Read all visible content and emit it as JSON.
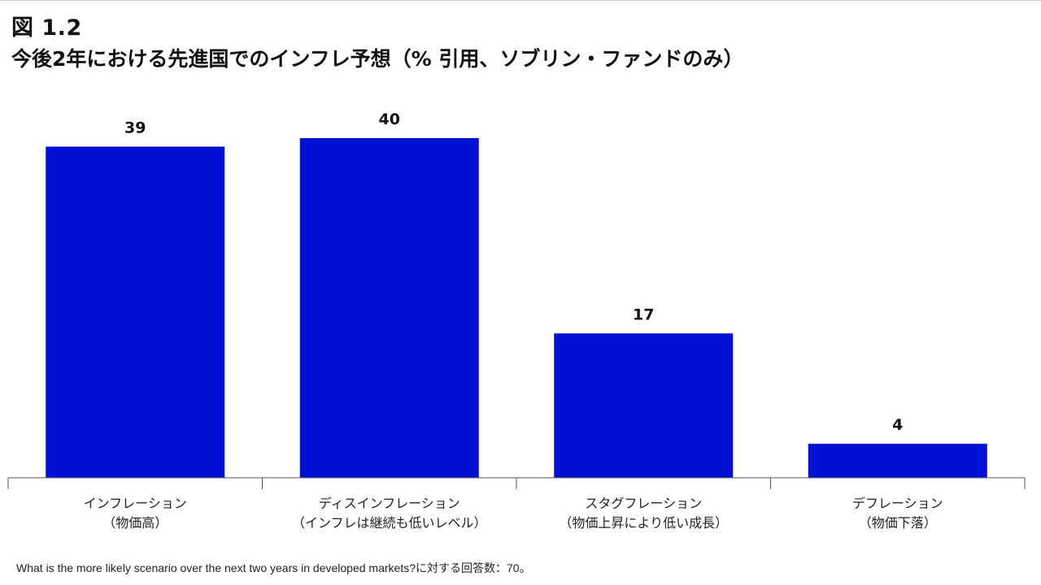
{
  "header": {
    "figure_label": "図 1.2",
    "title": "今後2年における先進国でのインフレ予想（% 引用、ソブリン・ファンドのみ）"
  },
  "chart_data": {
    "type": "bar",
    "title": "今後2年における先進国でのインフレ予想（% 引用、ソブリン・ファンドのみ）",
    "categories": [
      [
        "インフレーション",
        "（物価高）"
      ],
      [
        "ディスインフレーション",
        "（インフレは継続も低いレベル）"
      ],
      [
        "スタグフレーション",
        "（物価上昇により低い成長）"
      ],
      [
        "デフレーション",
        "（物価下落）"
      ]
    ],
    "values": [
      39,
      40,
      17,
      4
    ],
    "xlabel": "",
    "ylabel": "",
    "ylim": [
      0,
      40
    ],
    "grid": false,
    "legend": "none",
    "bar_color": "#0010D4"
  },
  "footnote": "What is the more likely scenario over the next two years in developed markets?に対する回答数：70。"
}
